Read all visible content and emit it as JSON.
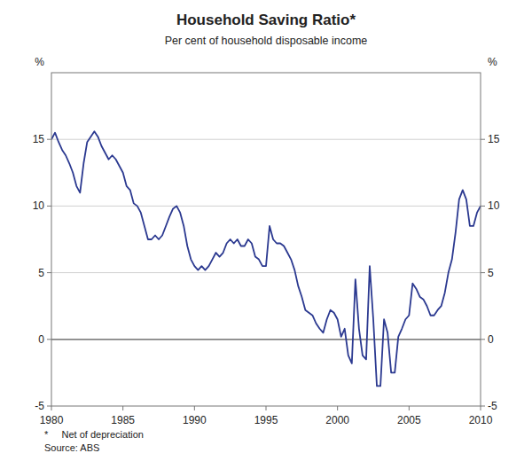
{
  "chart_data": {
    "type": "line",
    "title": "Household Saving Ratio*",
    "subtitle": "Per cent of household disposable income",
    "y_label": "%",
    "y2_label": "%",
    "footnotes": [
      "*     Net of depreciation",
      "Source: ABS"
    ],
    "color": "#2b3990",
    "grid": true,
    "xlim": [
      1980,
      2010
    ],
    "xticks": [
      1980,
      1985,
      1990,
      1995,
      2000,
      2005,
      2010
    ],
    "ylim": [
      -5,
      20
    ],
    "yticks": [
      -5,
      0,
      5,
      10,
      15
    ],
    "y2lim": [
      -5,
      20
    ],
    "y2ticks": [
      -5,
      0,
      5,
      10,
      15
    ],
    "x": [
      1980.0,
      1980.25,
      1980.5,
      1980.75,
      1981.0,
      1981.25,
      1981.5,
      1981.75,
      1982.0,
      1982.25,
      1982.5,
      1982.75,
      1983.0,
      1983.25,
      1983.5,
      1983.75,
      1984.0,
      1984.25,
      1984.5,
      1984.75,
      1985.0,
      1985.25,
      1985.5,
      1985.75,
      1986.0,
      1986.25,
      1986.5,
      1986.75,
      1987.0,
      1987.25,
      1987.5,
      1987.75,
      1988.0,
      1988.25,
      1988.5,
      1988.75,
      1989.0,
      1989.25,
      1989.5,
      1989.75,
      1990.0,
      1990.25,
      1990.5,
      1990.75,
      1991.0,
      1991.25,
      1991.5,
      1991.75,
      1992.0,
      1992.25,
      1992.5,
      1992.75,
      1993.0,
      1993.25,
      1993.5,
      1993.75,
      1994.0,
      1994.25,
      1994.5,
      1994.75,
      1995.0,
      1995.25,
      1995.5,
      1995.75,
      1996.0,
      1996.25,
      1996.5,
      1996.75,
      1997.0,
      1997.25,
      1997.5,
      1997.75,
      1998.0,
      1998.25,
      1998.5,
      1998.75,
      1999.0,
      1999.25,
      1999.5,
      1999.75,
      2000.0,
      2000.25,
      2000.5,
      2000.75,
      2001.0,
      2001.25,
      2001.5,
      2001.75,
      2002.0,
      2002.25,
      2002.5,
      2002.75,
      2003.0,
      2003.25,
      2003.5,
      2003.75,
      2004.0,
      2004.25,
      2004.5,
      2004.75,
      2005.0,
      2005.25,
      2005.5,
      2005.75,
      2006.0,
      2006.25,
      2006.5,
      2006.75,
      2007.0,
      2007.25,
      2007.5,
      2007.75,
      2008.0,
      2008.25,
      2008.5,
      2008.75,
      2009.0,
      2009.25,
      2009.5,
      2009.75,
      2010.0
    ],
    "values": [
      15.0,
      15.5,
      14.8,
      14.2,
      13.8,
      13.2,
      12.5,
      11.5,
      11.0,
      13.2,
      14.8,
      15.2,
      15.6,
      15.2,
      14.5,
      14.0,
      13.5,
      13.8,
      13.5,
      13.0,
      12.5,
      11.5,
      11.2,
      10.2,
      10.0,
      9.5,
      8.5,
      7.5,
      7.5,
      7.8,
      7.5,
      7.8,
      8.5,
      9.2,
      9.8,
      10.0,
      9.5,
      8.5,
      7.0,
      6.0,
      5.5,
      5.2,
      5.5,
      5.2,
      5.5,
      6.0,
      6.5,
      6.2,
      6.5,
      7.2,
      7.5,
      7.2,
      7.5,
      7.0,
      7.0,
      7.5,
      7.2,
      6.2,
      6.0,
      5.5,
      5.5,
      8.5,
      7.5,
      7.2,
      7.2,
      7.0,
      6.5,
      6.0,
      5.2,
      4.0,
      3.2,
      2.2,
      2.0,
      1.8,
      1.2,
      0.8,
      0.5,
      1.5,
      2.2,
      2.0,
      1.5,
      0.2,
      0.8,
      -1.2,
      -1.8,
      4.5,
      0.8,
      -1.2,
      -1.5,
      5.5,
      1.5,
      -3.5,
      -3.5,
      1.5,
      0.5,
      -2.5,
      -2.5,
      0.2,
      0.8,
      1.5,
      1.8,
      4.2,
      3.8,
      3.2,
      3.0,
      2.5,
      1.8,
      1.8,
      2.2,
      2.5,
      3.5,
      5.0,
      6.0,
      8.0,
      10.5,
      11.2,
      10.5,
      8.5,
      8.5,
      9.5,
      10.0
    ]
  }
}
